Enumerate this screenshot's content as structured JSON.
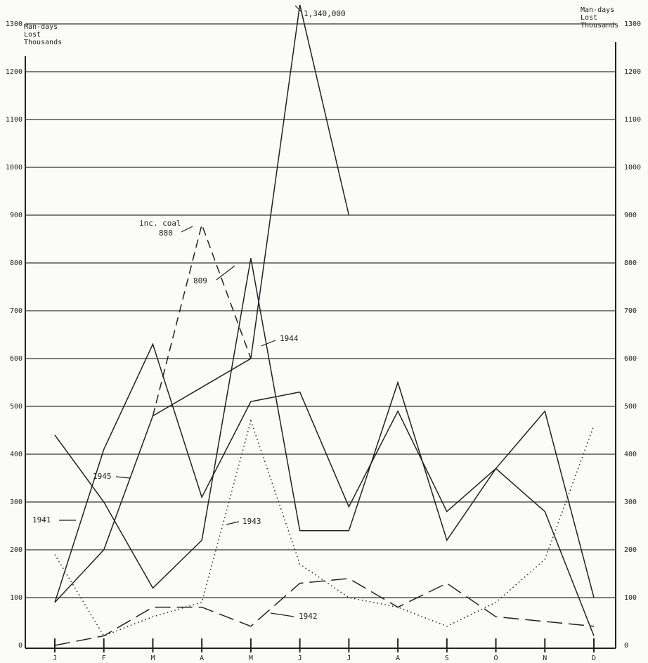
{
  "chart_data": {
    "type": "line",
    "y_label": "Man-days Lost Thousands",
    "y2_label": "Man-days Lost Thousands",
    "categories": [
      "J",
      "F",
      "M",
      "A",
      "M",
      "J",
      "J",
      "A",
      "S",
      "O",
      "N",
      "D"
    ],
    "ylim": [
      0,
      1300
    ],
    "yticks": [
      0,
      100,
      200,
      300,
      400,
      500,
      600,
      700,
      800,
      900,
      1000,
      1100,
      1200,
      1300
    ],
    "grid": true,
    "series": [
      {
        "name": "1941",
        "color": "#222222",
        "style": "solid",
        "values": [
          440,
          300,
          120,
          220,
          810,
          240,
          240,
          550,
          220,
          370,
          490,
          100
        ]
      },
      {
        "name": "1942",
        "color": "#222222",
        "style": "long-dashed",
        "values": [
          0,
          20,
          80,
          80,
          40,
          130,
          140,
          80,
          130,
          60,
          50,
          40
        ]
      },
      {
        "name": "1943",
        "color": "#222222",
        "style": "dotted",
        "values": [
          190,
          20,
          60,
          90,
          470,
          170,
          100,
          80,
          40,
          90,
          180,
          460
        ]
      },
      {
        "name": "1944",
        "color": "#222222",
        "style": "solid",
        "values": [
          90,
          410,
          630,
          310,
          510,
          530,
          290,
          490,
          280,
          370,
          280,
          20
        ]
      },
      {
        "name": "1945",
        "color": "#222222",
        "style": "solid",
        "values": [
          90,
          200,
          480,
          540,
          600,
          1340,
          900,
          null,
          null,
          null,
          null,
          null
        ]
      },
      {
        "name": "inc. coal",
        "color": "#222222",
        "style": "dashed",
        "values": [
          null,
          null,
          480,
          880,
          600,
          null,
          null,
          null,
          null,
          null,
          null,
          null
        ]
      }
    ],
    "annotations": [
      "1,340,000",
      "880",
      "809"
    ]
  }
}
